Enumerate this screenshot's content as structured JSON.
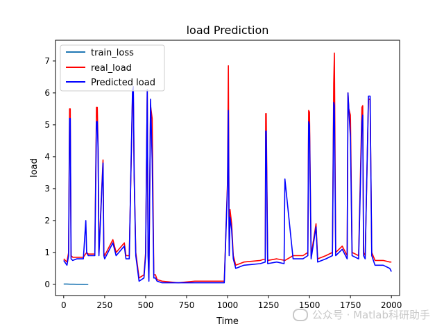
{
  "chart_data": {
    "type": "line",
    "title": "load Prediction",
    "xlabel": "Time",
    "ylabel": "load",
    "xlim": [
      -50,
      2050
    ],
    "ylim": [
      -0.35,
      7.65
    ],
    "xticks": [
      0,
      250,
      500,
      750,
      1000,
      1250,
      1500,
      1750,
      2000
    ],
    "yticks": [
      0,
      1,
      2,
      3,
      4,
      5,
      6,
      7
    ],
    "grid": false,
    "legend_position": "top-left",
    "series": [
      {
        "name": "train_loss",
        "color": "#1f77b4",
        "x": [
          0,
          20,
          40,
          60,
          80,
          100,
          120,
          150
        ],
        "values": [
          0.01,
          0.01,
          0.005,
          0.005,
          0.002,
          0.002,
          0.0,
          -0.005
        ]
      },
      {
        "name": "real_load",
        "color": "#ff0000",
        "x": [
          0,
          20,
          30,
          36,
          40,
          45,
          55,
          80,
          120,
          140,
          150,
          190,
          200,
          205,
          210,
          215,
          240,
          245,
          250,
          300,
          320,
          370,
          380,
          400,
          420,
          425,
          430,
          440,
          460,
          490,
          500,
          510,
          515,
          520,
          530,
          540,
          550,
          560,
          570,
          600,
          700,
          800,
          900,
          980,
          1000,
          1005,
          1010,
          1015,
          1025,
          1035,
          1050,
          1100,
          1200,
          1230,
          1233,
          1236,
          1245,
          1300,
          1350,
          1400,
          1460,
          1490,
          1495,
          1500,
          1510,
          1540,
          1550,
          1600,
          1640,
          1648,
          1652,
          1660,
          1700,
          1730,
          1735,
          1740,
          1750,
          1760,
          1800,
          1820,
          1825,
          1830,
          1840,
          1860,
          1870,
          1880,
          1900,
          1950,
          1990,
          2000
        ],
        "values": [
          0.8,
          0.7,
          1.0,
          5.5,
          5.5,
          0.9,
          0.85,
          0.85,
          0.85,
          1.0,
          0.95,
          0.95,
          5.55,
          5.55,
          4.3,
          1.0,
          3.9,
          1.0,
          0.9,
          1.4,
          1.0,
          1.3,
          0.9,
          0.9,
          5.9,
          6.0,
          3.5,
          1.0,
          0.2,
          0.3,
          1.0,
          6.1,
          1.0,
          0.2,
          5.6,
          5.2,
          0.3,
          0.3,
          0.15,
          0.1,
          0.05,
          0.1,
          0.1,
          0.1,
          3.25,
          6.85,
          1.0,
          2.35,
          1.9,
          0.9,
          0.6,
          0.7,
          0.75,
          0.8,
          5.35,
          5.35,
          0.75,
          0.8,
          0.75,
          0.9,
          0.9,
          1.0,
          5.45,
          5.4,
          0.9,
          1.9,
          0.8,
          0.9,
          1.0,
          6.3,
          7.25,
          1.0,
          1.2,
          0.9,
          6.0,
          5.5,
          5.3,
          1.0,
          0.9,
          5.55,
          5.6,
          1.0,
          0.9,
          5.8,
          5.8,
          1.0,
          0.75,
          0.75,
          0.7,
          0.7
        ]
      },
      {
        "name": "Predicted load",
        "color": "#0000ff",
        "x": [
          0,
          20,
          30,
          36,
          40,
          45,
          55,
          80,
          120,
          135,
          140,
          150,
          190,
          200,
          205,
          210,
          215,
          240,
          245,
          250,
          300,
          320,
          370,
          380,
          400,
          420,
          425,
          430,
          440,
          460,
          490,
          500,
          510,
          515,
          520,
          530,
          540,
          550,
          560,
          570,
          600,
          700,
          800,
          900,
          980,
          1000,
          1005,
          1010,
          1015,
          1025,
          1035,
          1050,
          1100,
          1200,
          1230,
          1233,
          1236,
          1245,
          1300,
          1345,
          1350,
          1400,
          1460,
          1490,
          1495,
          1500,
          1510,
          1540,
          1550,
          1600,
          1640,
          1648,
          1652,
          1660,
          1700,
          1730,
          1735,
          1740,
          1750,
          1760,
          1800,
          1820,
          1825,
          1830,
          1840,
          1860,
          1870,
          1880,
          1900,
          1950,
          1990,
          2000
        ],
        "values": [
          0.75,
          0.6,
          0.9,
          5.2,
          5.2,
          0.8,
          0.75,
          0.8,
          0.8,
          2.0,
          1.0,
          0.9,
          0.9,
          5.1,
          5.1,
          4.2,
          0.9,
          3.8,
          0.9,
          0.8,
          1.3,
          0.9,
          1.2,
          0.8,
          0.8,
          6.1,
          6.2,
          3.4,
          0.9,
          0.1,
          0.2,
          0.9,
          6.1,
          0.9,
          0.1,
          5.8,
          3.9,
          0.2,
          0.2,
          0.1,
          0.05,
          0.05,
          0.05,
          0.05,
          0.05,
          3.1,
          5.45,
          0.9,
          2.1,
          1.7,
          0.8,
          0.5,
          0.6,
          0.65,
          0.7,
          4.8,
          4.8,
          0.65,
          0.7,
          0.65,
          3.3,
          0.8,
          0.8,
          0.9,
          5.1,
          5.0,
          0.8,
          1.8,
          0.7,
          0.8,
          0.9,
          5.7,
          5.6,
          0.9,
          1.1,
          0.8,
          6.0,
          5.5,
          4.6,
          0.9,
          0.8,
          5.1,
          5.3,
          0.9,
          0.8,
          5.9,
          5.9,
          0.9,
          0.6,
          0.6,
          0.5,
          0.4
        ]
      }
    ]
  },
  "watermark": "公众号 · Matlab科研助手"
}
